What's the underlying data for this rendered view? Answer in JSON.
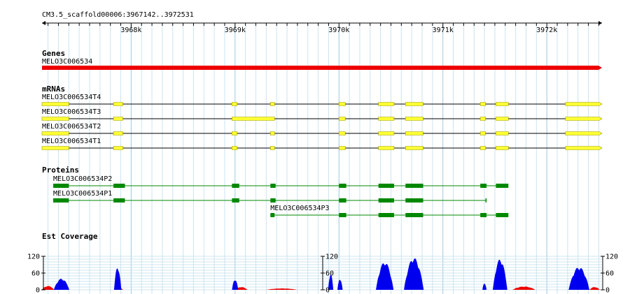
{
  "region_label": "CM3.5_scaffold00006:3967142..3972531",
  "ruler": {
    "start": 3967142,
    "end": 3972531,
    "ticks": [
      {
        "pos": 3968000,
        "label": "3968k"
      },
      {
        "pos": 3969000,
        "label": "3969k"
      },
      {
        "pos": 3970000,
        "label": "3970k"
      },
      {
        "pos": 3971000,
        "label": "3971k"
      },
      {
        "pos": 3972000,
        "label": "3972k"
      }
    ]
  },
  "colors": {
    "gene": "#ee0000",
    "mrna": "#ffff33",
    "mrna_outline": "#999900",
    "protein": "#008800",
    "grid": "#cce4f0",
    "coverage_plus": "#0000ee",
    "coverage_minus": "#ee0000"
  },
  "tracks": {
    "genes": {
      "title": "Genes",
      "features": [
        {
          "name": "MELO3C006534",
          "start": 3967142,
          "end": 3972531,
          "strand": "+"
        }
      ]
    },
    "mrnas": {
      "title": "mRNAs",
      "features": [
        {
          "name": "MELO3C006534T4",
          "start": 3967142,
          "end": 3972531,
          "exons": [
            [
              3967142,
              3967400
            ],
            [
              3967830,
              3967920
            ],
            [
              3968970,
              3969020
            ],
            [
              3969340,
              3969380
            ],
            [
              3970000,
              3970060
            ],
            [
              3970380,
              3970530
            ],
            [
              3970640,
              3970810
            ],
            [
              3971360,
              3971410
            ],
            [
              3971510,
              3971630
            ],
            [
              3972180,
              3972531
            ]
          ]
        },
        {
          "name": "MELO3C006534T3",
          "start": 3967142,
          "end": 3972531,
          "exons": [
            [
              3967142,
              3967400
            ],
            [
              3967830,
              3967920
            ],
            [
              3968970,
              3969380
            ],
            [
              3970000,
              3970060
            ],
            [
              3970380,
              3970530
            ],
            [
              3970640,
              3970810
            ],
            [
              3971360,
              3971410
            ],
            [
              3971510,
              3971630
            ],
            [
              3972180,
              3972531
            ]
          ]
        },
        {
          "name": "MELO3C006534T2",
          "start": 3967142,
          "end": 3972531,
          "exons": [
            [
              3967142,
              3967400
            ],
            [
              3967830,
              3967920
            ],
            [
              3968970,
              3969020
            ],
            [
              3969340,
              3969380
            ],
            [
              3970000,
              3970060
            ],
            [
              3970380,
              3970530
            ],
            [
              3970640,
              3970810
            ],
            [
              3971360,
              3971410
            ],
            [
              3971510,
              3971630
            ],
            [
              3972180,
              3972531
            ]
          ]
        },
        {
          "name": "MELO3C006534T1",
          "start": 3967142,
          "end": 3972531,
          "exons": [
            [
              3967142,
              3967400
            ],
            [
              3967830,
              3967920
            ],
            [
              3968970,
              3969020
            ],
            [
              3969340,
              3969380
            ],
            [
              3970000,
              3970060
            ],
            [
              3970380,
              3970530
            ],
            [
              3970640,
              3970810
            ],
            [
              3971360,
              3971410
            ],
            [
              3971510,
              3971630
            ],
            [
              3972180,
              3972531
            ]
          ]
        }
      ]
    },
    "proteins": {
      "title": "Proteins",
      "features": [
        {
          "name": "MELO3C006534P2",
          "start": 3967250,
          "end": 3971630,
          "row": 0,
          "exons": [
            [
              3967250,
              3967400
            ],
            [
              3967830,
              3967940
            ],
            [
              3968970,
              3969040
            ],
            [
              3969340,
              3969390
            ],
            [
              3970000,
              3970070
            ],
            [
              3970380,
              3970530
            ],
            [
              3970640,
              3970810
            ],
            [
              3971360,
              3971420
            ],
            [
              3971510,
              3971630
            ]
          ]
        },
        {
          "name": "MELO3C006534P1",
          "start": 3967250,
          "end": 3971420,
          "row": 1,
          "exons": [
            [
              3967250,
              3967400
            ],
            [
              3967830,
              3967940
            ],
            [
              3968970,
              3969040
            ],
            [
              3969340,
              3969390
            ],
            [
              3970000,
              3970070
            ],
            [
              3970380,
              3970530
            ],
            [
              3970640,
              3970810
            ],
            [
              3971410,
              3971420
            ]
          ]
        },
        {
          "name": "MELO3C006534P3",
          "start": 3969340,
          "end": 3971630,
          "row": 2,
          "exons": [
            [
              3969340,
              3969380
            ],
            [
              3970000,
              3970070
            ],
            [
              3970380,
              3970530
            ],
            [
              3970640,
              3970810
            ],
            [
              3971360,
              3971420
            ],
            [
              3971510,
              3971630
            ]
          ]
        }
      ]
    },
    "est_coverage": {
      "title": "Est Coverage",
      "ymax": 120,
      "yticks": [
        0,
        60,
        120
      ],
      "peaks_plus": [
        {
          "center": 3967330,
          "width": 150,
          "height": 40
        },
        {
          "center": 3967870,
          "width": 70,
          "height": 82
        },
        {
          "center": 3969000,
          "width": 60,
          "height": 38
        },
        {
          "center": 3969920,
          "width": 50,
          "height": 58
        },
        {
          "center": 3970010,
          "width": 50,
          "height": 40
        },
        {
          "center": 3970440,
          "width": 170,
          "height": 100
        },
        {
          "center": 3970720,
          "width": 190,
          "height": 115
        },
        {
          "center": 3971400,
          "width": 40,
          "height": 25
        },
        {
          "center": 3971550,
          "width": 140,
          "height": 110
        },
        {
          "center": 3972310,
          "width": 200,
          "height": 82
        }
      ],
      "peaks_minus": [
        {
          "center": 3967200,
          "width": 120,
          "height": 14
        },
        {
          "center": 3967900,
          "width": 40,
          "height": 6
        },
        {
          "center": 3969060,
          "width": 120,
          "height": 10
        },
        {
          "center": 3969450,
          "width": 300,
          "height": 5
        },
        {
          "center": 3970460,
          "width": 80,
          "height": 8
        },
        {
          "center": 3971780,
          "width": 220,
          "height": 12
        },
        {
          "center": 3972460,
          "width": 100,
          "height": 10
        }
      ],
      "left_axis_labels": [
        "120",
        "60",
        "0"
      ],
      "mid_axis_labels": [
        "120",
        "60",
        "0"
      ],
      "right_axis_labels": [
        "120",
        "60",
        "0"
      ]
    }
  }
}
